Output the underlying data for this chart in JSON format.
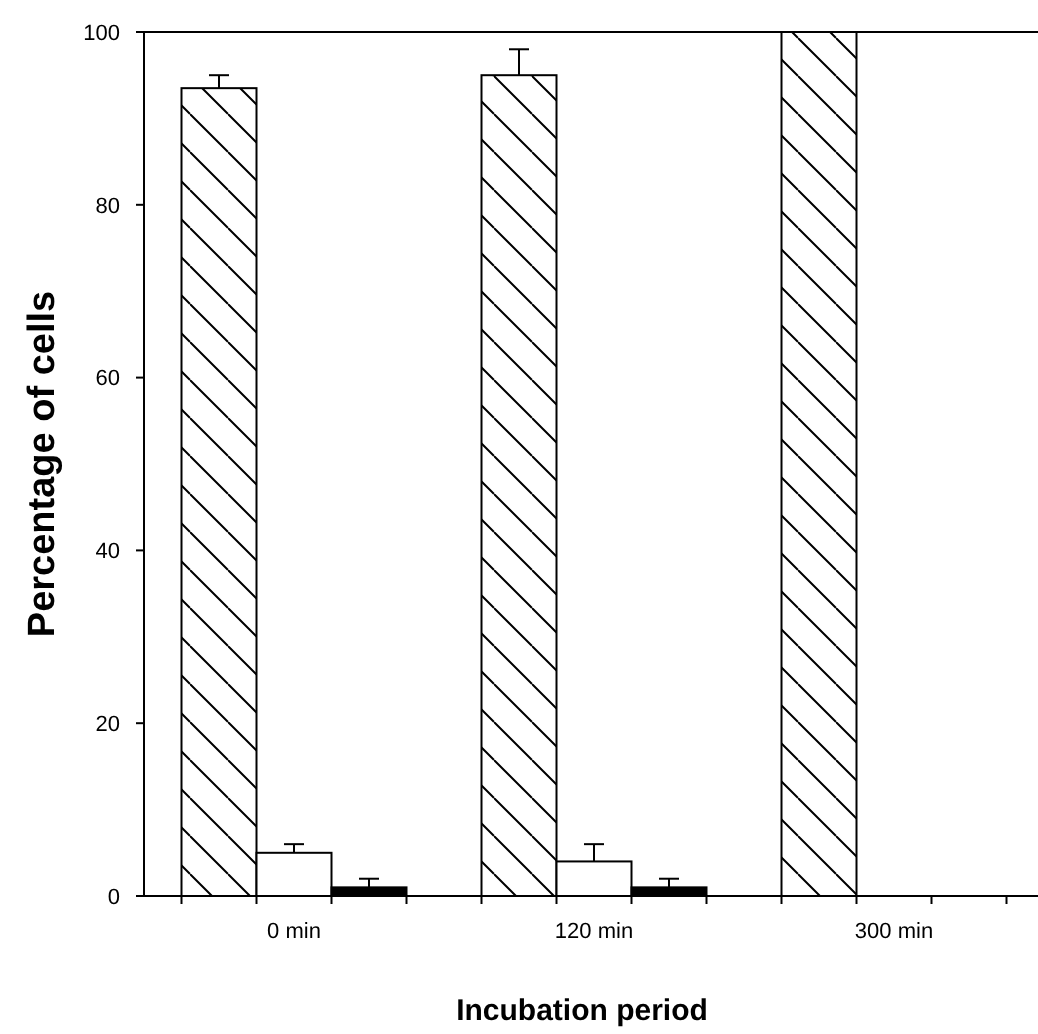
{
  "chart_data": {
    "type": "bar",
    "xlabel": "Incubation period",
    "ylabel": "Percentage of cells",
    "categories": [
      "0 min",
      "120 min",
      "300 min"
    ],
    "series": [
      {
        "color": "#000000",
        "values": [
          93.5,
          95,
          100
        ],
        "errors": [
          1.5,
          3,
          null
        ]
      },
      {
        "color": "#ffffff",
        "values": [
          5,
          4,
          0
        ],
        "errors": [
          1,
          2,
          null
        ]
      },
      {
        "color": "#000000",
        "values": [
          1,
          1,
          0
        ],
        "errors": [
          1,
          1,
          null
        ]
      }
    ],
    "ylim": [
      0,
      100
    ],
    "yticks": [
      0,
      20,
      40,
      60,
      80,
      100
    ],
    "grid": false
  }
}
